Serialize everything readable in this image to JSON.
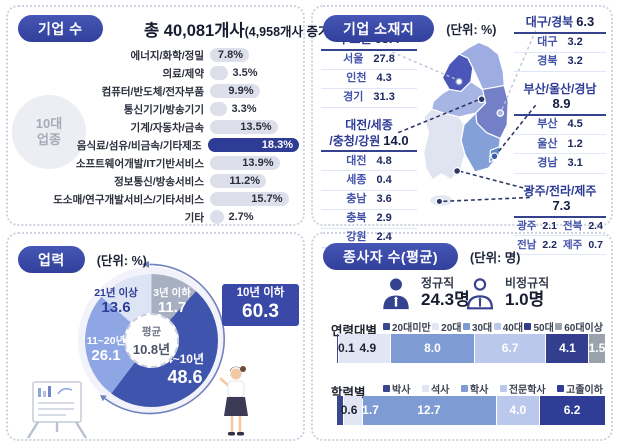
{
  "colors": {
    "badge": "#3a49a8",
    "bar_pill": "#dde0ea",
    "bar_highlight": "#2e3c96",
    "panel_border": "#ccd3df",
    "pie": [
      "#a7b0c0",
      "#3f55ad",
      "#8ea6e4",
      "#dde4f4"
    ],
    "map_capital": "#4a57b8",
    "map_gangwon": "#9dade2",
    "map_chungcheong": "#a7b5e4",
    "map_gyeongbuk": "#7380c8",
    "map_gyeongnam": "#84a0d8",
    "map_jeolla": "#e0e4f1",
    "map_jeju": "#e4e8f3"
  },
  "panel_companies": {
    "badge": "기업 수",
    "title_main": "총 40,081개사",
    "title_sub": "(4,958개사 증가)",
    "circle": [
      "10대",
      "업종"
    ],
    "rows": [
      {
        "label": "에너지/화학/정밀",
        "pct": 7.8,
        "text": "7.8%",
        "hl": false,
        "inside": true
      },
      {
        "label": "의료/제약",
        "pct": 3.5,
        "text": "3.5%",
        "hl": false,
        "inside": false
      },
      {
        "label": "컴퓨터/반도체/전자부품",
        "pct": 9.9,
        "text": "9.9%",
        "hl": false,
        "inside": true
      },
      {
        "label": "통신기기/방송기기",
        "pct": 3.3,
        "text": "3.3%",
        "hl": false,
        "inside": false
      },
      {
        "label": "기계/자동차/금속",
        "pct": 13.5,
        "text": "13.5%",
        "hl": false,
        "inside": true
      },
      {
        "label": "음식료/섬유/비금속/기타제조",
        "pct": 18.3,
        "text": "18.3%",
        "hl": true,
        "inside": true
      },
      {
        "label": "소프트웨어개발/IT기반서비스",
        "pct": 13.9,
        "text": "13.9%",
        "hl": false,
        "inside": true
      },
      {
        "label": "정보통신/방송서비스",
        "pct": 11.2,
        "text": "11.2%",
        "hl": false,
        "inside": true
      },
      {
        "label": "도소매/연구개발서비스/기타서비스",
        "pct": 15.7,
        "text": "15.7%",
        "hl": false,
        "inside": true
      },
      {
        "label": "기타",
        "pct": 2.7,
        "text": "2.7%",
        "hl": false,
        "inside": false
      }
    ]
  },
  "panel_location": {
    "badge": "기업 소재지",
    "unit": "(단위: %)",
    "left": [
      {
        "hl1": "수도권",
        "hl2": null,
        "hv": "63.4",
        "rows": [
          {
            "k": "서울",
            "v": "27.8"
          },
          {
            "k": "인천",
            "v": "4.3"
          },
          {
            "k": "경기",
            "v": "31.3"
          }
        ]
      },
      {
        "hl1": "대전/세종",
        "hl2": "/충청/강원",
        "hv": "14.0",
        "rows": [
          {
            "k": "대전",
            "v": "4.8"
          },
          {
            "k": "세종",
            "v": "0.4"
          },
          {
            "k": "충남",
            "v": "3.6"
          },
          {
            "k": "충북",
            "v": "2.9"
          },
          {
            "k": "강원",
            "v": "2.4"
          }
        ]
      }
    ],
    "right": [
      {
        "hl1": "대구/경북",
        "hl2": null,
        "hv": "6.3",
        "rows": [
          {
            "k": "대구",
            "v": "3.2"
          },
          {
            "k": "경북",
            "v": "3.2"
          }
        ]
      },
      {
        "hl1": "부산/울산/경남",
        "hl2": "",
        "hv": "8.9",
        "rows": [
          {
            "k": "부산",
            "v": "4.5"
          },
          {
            "k": "울산",
            "v": "1.2"
          },
          {
            "k": "경남",
            "v": "3.1"
          }
        ]
      },
      {
        "hl1": "광주/전라/제주",
        "hl2": "",
        "hv": "7.3",
        "pair_rows": [
          [
            {
              "k": "광주",
              "v": "2.1"
            },
            {
              "k": "전북",
              "v": "2.4"
            }
          ],
          [
            {
              "k": "전남",
              "v": "2.2"
            },
            {
              "k": "제주",
              "v": "0.7"
            }
          ]
        ]
      }
    ]
  },
  "panel_age": {
    "badge": "업력",
    "unit": "(단위: %)",
    "slices": [
      {
        "name": "3년 이하",
        "display": "11.7",
        "value": 11.7
      },
      {
        "name": "4~10년",
        "display": "48.6",
        "value": 48.6
      },
      {
        "name": "11~20년",
        "display": "26.1",
        "value": 26.1
      },
      {
        "name": "21년 이상",
        "display": "13.6",
        "value": 13.6
      }
    ],
    "center": [
      "평균",
      "10.8년"
    ],
    "callout_label": "10년 이하",
    "callout_value": "60.3"
  },
  "panel_workers": {
    "badge": "종사자 수(평균)",
    "unit": "(단위: 명)",
    "stats": [
      {
        "label": "정규직",
        "value": "24.3명"
      },
      {
        "label": "비정규직",
        "value": "1.0명"
      }
    ],
    "sections": [
      {
        "title": "연령대별",
        "total": 25.3,
        "segments": [
          {
            "name": "20대미만",
            "v": 0.1,
            "c": "#39478f",
            "label": "0.1",
            "lp": 3.5,
            "lc": "#1e2433"
          },
          {
            "name": "20대",
            "v": 4.9,
            "c": "#e2e6f4",
            "label": "4.9",
            "lp": 11.5,
            "lc": "#1e2433"
          },
          {
            "name": "30대",
            "v": 8.0,
            "c": "#7e9bd4",
            "label": "8.0",
            "lp": 35.6,
            "lc": "#ffffff"
          },
          {
            "name": "40대",
            "v": 6.7,
            "c": "#bac8ec",
            "label": "6.7",
            "lp": 64.6,
            "lc": "#ffffff"
          },
          {
            "name": "50대",
            "v": 4.1,
            "c": "#333f8e",
            "label": "4.1",
            "lp": 86.0,
            "lc": "#ffffff"
          },
          {
            "name": "60대이상",
            "v": 1.5,
            "c": "#9aa2ae",
            "label": "1.5",
            "lp": 97.0,
            "lc": "#ffffff"
          }
        ]
      },
      {
        "title": "학력별",
        "total": 25.2,
        "segments": [
          {
            "name": "박사",
            "v": 0.6,
            "c": "#39478f",
            "label": "0.6",
            "lp": 4.5,
            "lc": "#1e2433"
          },
          {
            "name": "석사",
            "v": 1.7,
            "c": "#e2e6f4",
            "label": "1.7",
            "lp": 12.5,
            "lc": "#ffffff"
          },
          {
            "name": "학사",
            "v": 12.7,
            "c": "#7e9bd4",
            "label": "12.7",
            "lp": 34.3,
            "lc": "#ffffff"
          },
          {
            "name": "전문학사",
            "v": 4.0,
            "c": "#bac8ec",
            "label": "4.0",
            "lp": 67.5,
            "lc": "#ffffff"
          },
          {
            "name": "고졸이하",
            "v": 6.2,
            "c": "#2f3d96",
            "label": "6.2",
            "lp": 87.7,
            "lc": "#ffffff"
          }
        ]
      }
    ]
  },
  "chart_data": [
    {
      "type": "bar",
      "title": "기업 수",
      "subtitle": "총 40,081개사(4,958개사 증가)",
      "annotation": "10대 업종",
      "unit": "%",
      "categories": [
        "에너지/화학/정밀",
        "의료/제약",
        "컴퓨터/반도체/전자부품",
        "통신기기/방송기기",
        "기계/자동차/금속",
        "음식료/섬유/비금속/기타제조",
        "소프트웨어개발/IT기반서비스",
        "정보통신/방송서비스",
        "도소매/연구개발서비스/기타서비스",
        "기타"
      ],
      "values": [
        7.8,
        3.5,
        9.9,
        3.3,
        13.5,
        18.3,
        13.9,
        11.2,
        15.7,
        2.7
      ],
      "highlight_index": 5
    },
    {
      "type": "map",
      "title": "기업 소재지",
      "unit": "%",
      "groups": [
        {
          "name": "수도권",
          "value": 63.4,
          "children": [
            [
              "서울",
              27.8
            ],
            [
              "인천",
              4.3
            ],
            [
              "경기",
              31.3
            ]
          ]
        },
        {
          "name": "대전/세종/충청/강원",
          "value": 14.0,
          "children": [
            [
              "대전",
              4.8
            ],
            [
              "세종",
              0.4
            ],
            [
              "충남",
              3.6
            ],
            [
              "충북",
              2.9
            ],
            [
              "강원",
              2.4
            ]
          ]
        },
        {
          "name": "대구/경북",
          "value": 6.3,
          "children": [
            [
              "대구",
              3.2
            ],
            [
              "경북",
              3.2
            ]
          ]
        },
        {
          "name": "부산/울산/경남",
          "value": 8.9,
          "children": [
            [
              "부산",
              4.5
            ],
            [
              "울산",
              1.2
            ],
            [
              "경남",
              3.1
            ]
          ]
        },
        {
          "name": "광주/전라/제주",
          "value": 7.3,
          "children": [
            [
              "광주",
              2.1
            ],
            [
              "전북",
              2.4
            ],
            [
              "전남",
              2.2
            ],
            [
              "제주",
              0.7
            ]
          ]
        }
      ]
    },
    {
      "type": "pie",
      "title": "업력",
      "unit": "%",
      "categories": [
        "3년 이하",
        "4~10년",
        "11~20년",
        "21년 이상"
      ],
      "values": [
        11.7,
        48.6,
        26.1,
        13.6
      ],
      "center_label": "평균 10.8년",
      "callout": {
        "label": "10년 이하",
        "value": 60.3
      }
    },
    {
      "type": "bar",
      "title": "종사자 수(평균)",
      "unit": "명",
      "stats": [
        [
          "정규직",
          24.3
        ],
        [
          "비정규직",
          1.0
        ]
      ],
      "series": [
        {
          "name": "연령대별",
          "categories": [
            "20대미만",
            "20대",
            "30대",
            "40대",
            "50대",
            "60대이상"
          ],
          "values": [
            0.1,
            4.9,
            8.0,
            6.7,
            4.1,
            1.5
          ]
        },
        {
          "name": "학력별",
          "categories": [
            "박사",
            "석사",
            "학사",
            "전문학사",
            "고졸이하"
          ],
          "values": [
            0.6,
            1.7,
            12.7,
            4.0,
            6.2
          ]
        }
      ]
    }
  ]
}
